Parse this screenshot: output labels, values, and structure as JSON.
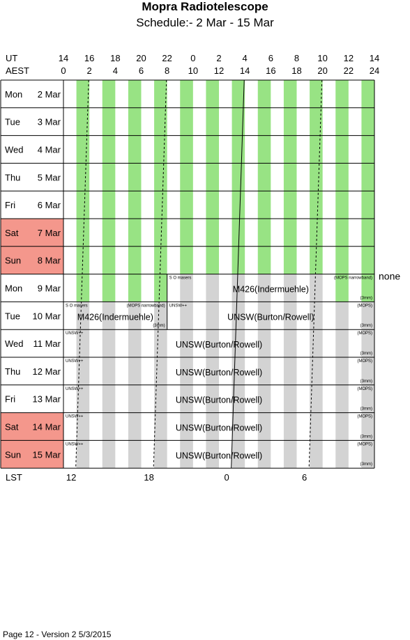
{
  "title": "Mopra Radiotelescope",
  "subtitle": "Schedule:- 2  Mar - 15 Mar",
  "footer": "Page 12 - Version 2  5/3/2015",
  "chart_data": {
    "type": "table",
    "ut_label": "UT",
    "aest_label": "AEST",
    "lst_label": "LST",
    "ut_ticks": [
      "14",
      "16",
      "18",
      "20",
      "22",
      "0",
      "2",
      "4",
      "6",
      "8",
      "10",
      "12",
      "14"
    ],
    "aest_ticks": [
      "0",
      "2",
      "4",
      "6",
      "8",
      "10",
      "12",
      "14",
      "16",
      "18",
      "20",
      "22",
      "24"
    ],
    "lst_ticks": [
      {
        "label": "12",
        "aest": 0.6
      },
      {
        "label": "18",
        "aest": 6.6
      },
      {
        "label": "0",
        "aest": 12.6
      },
      {
        "label": "6",
        "aest": 18.6
      }
    ],
    "hour_range_aest": [
      0,
      24
    ],
    "colors": {
      "weekend": "#f4978c",
      "green_stripe": "#98e384",
      "grey_stripe": "#d3d3d3",
      "grid": "#000000"
    },
    "days": [
      {
        "day": "Mon",
        "date": "2 Mar",
        "weekend": false,
        "stripe": "green"
      },
      {
        "day": "Tue",
        "date": "3 Mar",
        "weekend": false,
        "stripe": "green"
      },
      {
        "day": "Wed",
        "date": "4 Mar",
        "weekend": false,
        "stripe": "green"
      },
      {
        "day": "Thu",
        "date": "5 Mar",
        "weekend": false,
        "stripe": "green"
      },
      {
        "day": "Fri",
        "date": "6 Mar",
        "weekend": false,
        "stripe": "green"
      },
      {
        "day": "Sat",
        "date": "7 Mar",
        "weekend": true,
        "stripe": "green"
      },
      {
        "day": "Sun",
        "date": "8 Mar",
        "weekend": true,
        "stripe": "green"
      },
      {
        "day": "Mon",
        "date": "9 Mar",
        "weekend": false,
        "stripe": "mixed"
      },
      {
        "day": "Tue",
        "date": "10 Mar",
        "weekend": false,
        "stripe": "grey"
      },
      {
        "day": "Wed",
        "date": "11 Mar",
        "weekend": false,
        "stripe": "grey"
      },
      {
        "day": "Thu",
        "date": "12 Mar",
        "weekend": false,
        "stripe": "grey"
      },
      {
        "day": "Fri",
        "date": "13 Mar",
        "weekend": false,
        "stripe": "grey"
      },
      {
        "day": "Sat",
        "date": "14 Mar",
        "weekend": true,
        "stripe": "grey"
      },
      {
        "day": "Sun",
        "date": "15 Mar",
        "weekend": true,
        "stripe": "grey"
      }
    ],
    "none_label": "none",
    "blocks": [
      {
        "row": 7,
        "start": 8,
        "end": 24,
        "text": "M426(Indermuehle)",
        "notes": [
          {
            "text": "S O masers",
            "pos": "tl"
          },
          {
            "text": "(MOPS narrowband)",
            "pos": "tr"
          },
          {
            "text": "(3mm)",
            "pos": "br"
          }
        ]
      },
      {
        "row": 8,
        "start": 0,
        "end": 8,
        "text": "M426(Indermuehle)",
        "notes": [
          {
            "text": "S O masers",
            "pos": "tl"
          },
          {
            "text": "(MOPS narrowband)",
            "pos": "tr"
          },
          {
            "text": "(3mm)",
            "pos": "br"
          }
        ]
      },
      {
        "row": 8,
        "start": 8,
        "end": 24,
        "text": "UNSW(Burton/Rowell)",
        "notes": [
          {
            "text": "UNSW++",
            "pos": "tl"
          },
          {
            "text": "(MOPS)",
            "pos": "tr"
          },
          {
            "text": "(3mm)",
            "pos": "br"
          }
        ]
      },
      {
        "row": 9,
        "start": 0,
        "end": 24,
        "text": "UNSW(Burton/Rowell)",
        "notes": [
          {
            "text": "UNSW++",
            "pos": "tl"
          },
          {
            "text": "(MOPS)",
            "pos": "tr"
          },
          {
            "text": "(3mm)",
            "pos": "br"
          }
        ]
      },
      {
        "row": 10,
        "start": 0,
        "end": 24,
        "text": "UNSW(Burton/Rowell)",
        "notes": [
          {
            "text": "UNSW++",
            "pos": "tl"
          },
          {
            "text": "(MOPS)",
            "pos": "tr"
          },
          {
            "text": "(3mm)",
            "pos": "br"
          }
        ]
      },
      {
        "row": 11,
        "start": 0,
        "end": 24,
        "text": "UNSW(Burton/Rowell)",
        "notes": [
          {
            "text": "UNSW++",
            "pos": "tl"
          },
          {
            "text": "(MOPS)",
            "pos": "tr"
          },
          {
            "text": "(3mm)",
            "pos": "br"
          }
        ]
      },
      {
        "row": 12,
        "start": 0,
        "end": 24,
        "text": "UNSW(Burton/Rowell)",
        "notes": [
          {
            "text": "UNSW++",
            "pos": "tl"
          },
          {
            "text": "(MOPS)",
            "pos": "tr"
          },
          {
            "text": "(3mm)",
            "pos": "br"
          }
        ]
      },
      {
        "row": 13,
        "start": 0,
        "end": 24,
        "text": "UNSW(Burton/Rowell)",
        "notes": [
          {
            "text": "UNSW++",
            "pos": "tl"
          },
          {
            "text": "(MOPS)",
            "pos": "tr"
          },
          {
            "text": "(3mm)",
            "pos": "br"
          }
        ]
      }
    ],
    "lst_lines": [
      {
        "style": "dashed",
        "aest_at_top": 1.95,
        "aest_at_bottom": 0.95
      },
      {
        "style": "dashed",
        "aest_at_top": 7.95,
        "aest_at_bottom": 6.95
      },
      {
        "style": "solid",
        "aest_at_top": 13.95,
        "aest_at_bottom": 12.95
      },
      {
        "style": "dashed",
        "aest_at_top": 19.95,
        "aest_at_bottom": 18.95
      }
    ]
  }
}
